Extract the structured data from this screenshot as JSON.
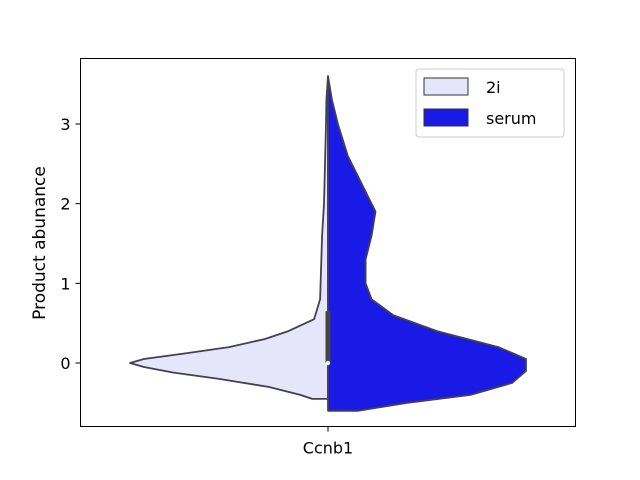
{
  "chart_data": {
    "type": "split-violin",
    "title": "",
    "xlabel": "",
    "ylabel": "Product abunance",
    "categories": [
      "Ccnb1"
    ],
    "ylim": [
      -0.8,
      3.8
    ],
    "yticks": [
      0,
      1,
      2,
      3
    ],
    "legend": {
      "position": "top-right"
    },
    "series": [
      {
        "name": "2i",
        "color": "#e6e6fa",
        "side": "left",
        "profile": [
          {
            "y": -0.45,
            "w": 0.08
          },
          {
            "y": -0.4,
            "w": 0.14
          },
          {
            "y": -0.3,
            "w": 0.3
          },
          {
            "y": -0.2,
            "w": 0.55
          },
          {
            "y": -0.12,
            "w": 0.78
          },
          {
            "y": -0.05,
            "w": 0.93
          },
          {
            "y": 0.0,
            "w": 1.0
          },
          {
            "y": 0.05,
            "w": 0.93
          },
          {
            "y": 0.12,
            "w": 0.72
          },
          {
            "y": 0.2,
            "w": 0.5
          },
          {
            "y": 0.3,
            "w": 0.32
          },
          {
            "y": 0.4,
            "w": 0.2
          },
          {
            "y": 0.55,
            "w": 0.07
          },
          {
            "y": 0.8,
            "w": 0.04
          },
          {
            "y": 1.2,
            "w": 0.035
          },
          {
            "y": 1.6,
            "w": 0.03
          },
          {
            "y": 2.0,
            "w": 0.02
          },
          {
            "y": 2.5,
            "w": 0.015
          },
          {
            "y": 3.0,
            "w": 0.01
          },
          {
            "y": 3.3,
            "w": 0.008
          },
          {
            "y": 3.6,
            "w": 0.0
          }
        ]
      },
      {
        "name": "serum",
        "color": "#1a1ae6",
        "side": "right",
        "profile": [
          {
            "y": -0.6,
            "w": 0.15
          },
          {
            "y": -0.5,
            "w": 0.4
          },
          {
            "y": -0.4,
            "w": 0.72
          },
          {
            "y": -0.25,
            "w": 0.93
          },
          {
            "y": -0.1,
            "w": 1.0
          },
          {
            "y": 0.05,
            "w": 1.0
          },
          {
            "y": 0.2,
            "w": 0.86
          },
          {
            "y": 0.4,
            "w": 0.55
          },
          {
            "y": 0.6,
            "w": 0.33
          },
          {
            "y": 0.8,
            "w": 0.22
          },
          {
            "y": 1.0,
            "w": 0.19
          },
          {
            "y": 1.3,
            "w": 0.19
          },
          {
            "y": 1.6,
            "w": 0.22
          },
          {
            "y": 1.9,
            "w": 0.24
          },
          {
            "y": 2.2,
            "w": 0.18
          },
          {
            "y": 2.6,
            "w": 0.1
          },
          {
            "y": 3.0,
            "w": 0.05
          },
          {
            "y": 3.3,
            "w": 0.02
          },
          {
            "y": 3.6,
            "w": 0.0
          }
        ]
      }
    ],
    "box": {
      "q1": 0.0,
      "q3": 0.65,
      "median": 0.0
    }
  }
}
